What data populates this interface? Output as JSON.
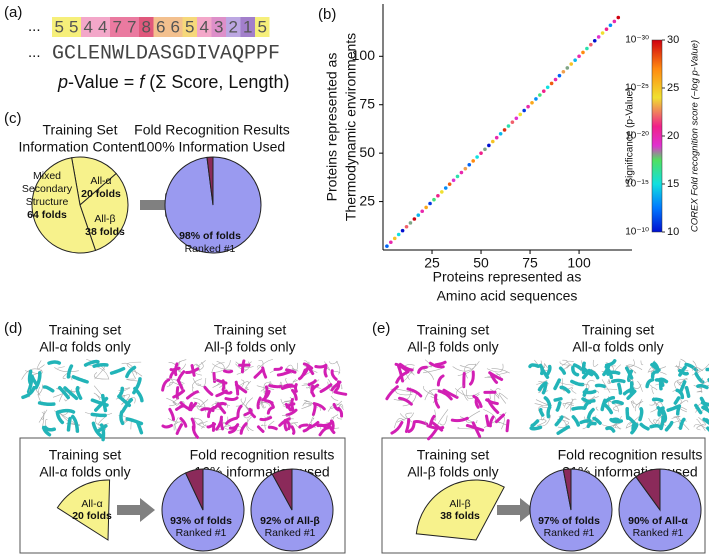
{
  "colors": {
    "hit": "#9a9af0",
    "miss": "#8b2a5a",
    "yellow": "#f7f28c",
    "alpha": "#22b4b8",
    "beta": "#d21fb4"
  },
  "panel_a": {
    "label": "(a)",
    "ellipsis": "...",
    "scores": [
      "5",
      "5",
      "4",
      "4",
      "7",
      "7",
      "8",
      "6",
      "6",
      "5",
      "4",
      "3",
      "2",
      "1",
      "5"
    ],
    "score_colors": [
      "#f6ef7a",
      "#f6ef7a",
      "#f3a7c9",
      "#f3a7c9",
      "#ea7aa0",
      "#ea7aa0",
      "#e0587c",
      "#f3c08e",
      "#f3c08e",
      "#f6d87a",
      "#f3a7c9",
      "#dd8fc9",
      "#bca7e2",
      "#a27fcb",
      "#f6ef7a"
    ],
    "sequence": "GCLENWLDASGDIVAQPPF",
    "formula": {
      "p": "p",
      "value": "-Value = ",
      "f": "f",
      "args": " (Σ Score, Length)"
    }
  },
  "chart_data": {
    "type": "scatter",
    "label": "(b)",
    "xlabel": [
      "Proteins represented as",
      "Amino acid sequences"
    ],
    "ylabel": [
      "Proteins represented as",
      "Thermodynamic environments"
    ],
    "x": [
      2,
      4,
      6,
      8,
      10,
      12,
      14,
      16,
      18,
      20,
      22,
      24,
      26,
      28,
      30,
      32,
      34,
      36,
      38,
      40,
      42,
      44,
      46,
      48,
      50,
      52,
      54,
      56,
      58,
      60,
      62,
      64,
      66,
      68,
      70,
      72,
      74,
      76,
      78,
      80,
      82,
      84,
      86,
      88,
      90,
      92,
      94,
      96,
      98,
      100,
      102,
      104,
      106,
      108,
      110,
      112,
      114,
      116,
      118,
      120
    ],
    "values": [
      2,
      4,
      6,
      8,
      10,
      12,
      14,
      16,
      18,
      20,
      22,
      24,
      26,
      28,
      30,
      32,
      34,
      36,
      38,
      40,
      42,
      44,
      46,
      48,
      50,
      52,
      54,
      56,
      58,
      60,
      62,
      64,
      66,
      68,
      70,
      72,
      74,
      76,
      78,
      80,
      82,
      84,
      86,
      88,
      90,
      92,
      94,
      96,
      98,
      100,
      102,
      104,
      106,
      108,
      110,
      112,
      114,
      116,
      118,
      120
    ],
    "scores": [
      12,
      20,
      25,
      15,
      10,
      22,
      18,
      30,
      14,
      20,
      26,
      11,
      17,
      21,
      24,
      13,
      28,
      19,
      16,
      20,
      23,
      12,
      27,
      15,
      21,
      18,
      10,
      25,
      20,
      14,
      29,
      16,
      22,
      19,
      24,
      11,
      20,
      26,
      13,
      17,
      21,
      15,
      28,
      20,
      12,
      23,
      18,
      25,
      14,
      20,
      27,
      16,
      22,
      10,
      19,
      24,
      21,
      13,
      20,
      30
    ],
    "xlim": [
      0,
      127
    ],
    "ylim": [
      0,
      127
    ],
    "xticks": [
      25,
      50,
      75,
      100
    ],
    "yticks": [
      25,
      50,
      75,
      100
    ],
    "colorbar": {
      "title_left": "Significance (p-Value)",
      "title_right": "COREX Fold recognition score (−log p-Value)",
      "lim": [
        10,
        30
      ],
      "ticks": [
        30,
        25,
        20,
        15,
        10
      ],
      "p_labels": [
        "10⁻³⁰",
        "10⁻²⁵",
        "10⁻²⁰",
        "10⁻¹⁵",
        "10⁻¹⁰"
      ],
      "stops": [
        {
          "value": 10,
          "color": "#0010d0"
        },
        {
          "value": 12.5,
          "color": "#0078ff"
        },
        {
          "value": 15,
          "color": "#10e0e0"
        },
        {
          "value": 17.5,
          "color": "#50e060"
        },
        {
          "value": 19,
          "color": "#e030d0"
        },
        {
          "value": 21,
          "color": "#f0208a"
        },
        {
          "value": 24,
          "color": "#f0e030"
        },
        {
          "value": 27,
          "color": "#ff8a10"
        },
        {
          "value": 30,
          "color": "#d00010"
        }
      ]
    }
  },
  "panel_c": {
    "label": "(c)",
    "left_title": [
      "Training Set",
      "Information Content"
    ],
    "slices": [
      {
        "name": [
          "All-α"
        ],
        "value": 20,
        "value_label": "20 folds"
      },
      {
        "name": [
          "All-β"
        ],
        "value": 38,
        "value_label": "38 folds"
      },
      {
        "name": [
          "Mixed",
          "Secondary",
          "Structure"
        ],
        "value": 64,
        "value_label": "64 folds"
      }
    ],
    "right_title": [
      "Fold Recognition Results",
      "100% Information Used"
    ],
    "result": {
      "values": [
        98,
        2
      ],
      "label": [
        "98% of folds",
        "Ranked #1"
      ]
    }
  },
  "panel_d": {
    "label": "(d)",
    "top": [
      [
        "Training set",
        "All-α folds only"
      ],
      [
        "Training set",
        "All-β folds only"
      ]
    ],
    "box_title": [
      "Training set",
      "All-α folds only"
    ],
    "wedge": {
      "name": "All-α",
      "value": 20,
      "value_label": "20 folds"
    },
    "results_title": [
      "Fold recognition results",
      "16% information used"
    ],
    "pies": [
      {
        "values": [
          93,
          7
        ],
        "label": [
          "93% of folds",
          "Ranked #1"
        ]
      },
      {
        "values": [
          92,
          8
        ],
        "label": [
          "92% of All-β",
          "Ranked #1"
        ]
      }
    ]
  },
  "panel_e": {
    "label": "(e)",
    "top": [
      [
        "Training set",
        "All-β folds only"
      ],
      [
        "Training set",
        "All-α folds only"
      ]
    ],
    "box_title": [
      "Training set",
      "All-β folds only"
    ],
    "wedge": {
      "name": "All-β",
      "value": 38,
      "value_label": "38 folds"
    },
    "results_title": [
      "Fold recognition results",
      "31% information used"
    ],
    "pies": [
      {
        "values": [
          97,
          3
        ],
        "label": [
          "97% of folds",
          "Ranked #1"
        ]
      },
      {
        "values": [
          90,
          10
        ],
        "label": [
          "90% of All-α",
          "Ranked #1"
        ]
      }
    ]
  }
}
